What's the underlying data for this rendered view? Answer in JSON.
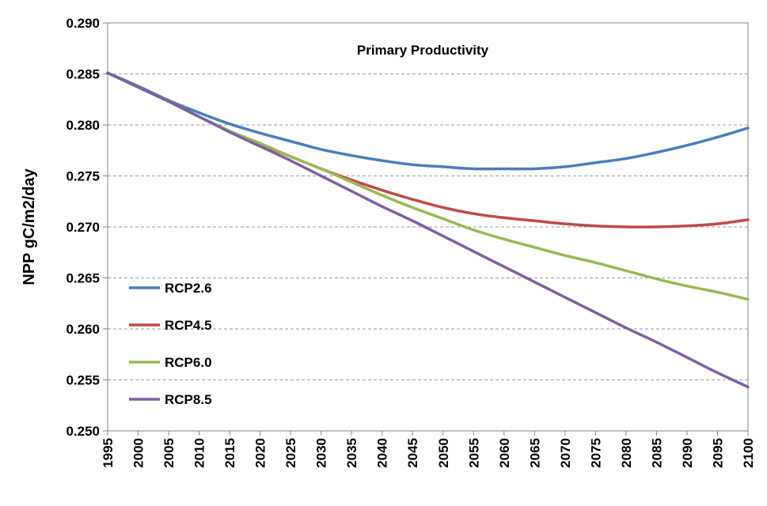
{
  "chart_data": {
    "type": "line",
    "title": "Primary Productivity",
    "ylabel": "NPP gC/m2/day",
    "xlabel": "",
    "xlim": [
      1995,
      2100
    ],
    "ylim": [
      0.25,
      0.29
    ],
    "x_ticks": [
      "1995",
      "2000",
      "2005",
      "2010",
      "2015",
      "2020",
      "2025",
      "2030",
      "2035",
      "2040",
      "2045",
      "2050",
      "2055",
      "2060",
      "2065",
      "2070",
      "2075",
      "2080",
      "2085",
      "2090",
      "2095",
      "2100"
    ],
    "y_ticks": [
      "0.250",
      "0.255",
      "0.260",
      "0.265",
      "0.270",
      "0.275",
      "0.280",
      "0.285",
      "0.290"
    ],
    "grid": "horizontal dashed",
    "legend_position": "left",
    "series": [
      {
        "name": "RCP2.6",
        "color": "#4a7ebb",
        "points": [
          [
            1995,
            0.2851
          ],
          [
            2000,
            0.2838
          ],
          [
            2005,
            0.2824
          ],
          [
            2010,
            0.2812
          ],
          [
            2015,
            0.2801
          ],
          [
            2020,
            0.2792
          ],
          [
            2025,
            0.2784
          ],
          [
            2030,
            0.2776
          ],
          [
            2035,
            0.277
          ],
          [
            2040,
            0.2765
          ],
          [
            2045,
            0.2761
          ],
          [
            2050,
            0.2759
          ],
          [
            2055,
            0.2757
          ],
          [
            2060,
            0.2757
          ],
          [
            2065,
            0.2757
          ],
          [
            2070,
            0.2759
          ],
          [
            2075,
            0.2763
          ],
          [
            2080,
            0.2767
          ],
          [
            2085,
            0.2773
          ],
          [
            2090,
            0.278
          ],
          [
            2095,
            0.2788
          ],
          [
            2100,
            0.2797
          ]
        ]
      },
      {
        "name": "RCP4.5",
        "color": "#be4b48",
        "points": [
          [
            1995,
            0.2851
          ],
          [
            2000,
            0.2837
          ],
          [
            2005,
            0.2823
          ],
          [
            2010,
            0.2808
          ],
          [
            2015,
            0.2794
          ],
          [
            2020,
            0.2781
          ],
          [
            2025,
            0.2769
          ],
          [
            2030,
            0.2757
          ],
          [
            2035,
            0.2746
          ],
          [
            2040,
            0.2736
          ],
          [
            2045,
            0.2727
          ],
          [
            2050,
            0.2719
          ],
          [
            2055,
            0.2713
          ],
          [
            2060,
            0.2709
          ],
          [
            2065,
            0.2706
          ],
          [
            2070,
            0.2703
          ],
          [
            2075,
            0.2701
          ],
          [
            2080,
            0.27
          ],
          [
            2085,
            0.27
          ],
          [
            2090,
            0.2701
          ],
          [
            2095,
            0.2703
          ],
          [
            2100,
            0.2707
          ]
        ]
      },
      {
        "name": "RCP6.0",
        "color": "#98b954",
        "points": [
          [
            1995,
            0.2851
          ],
          [
            2000,
            0.2837
          ],
          [
            2005,
            0.2823
          ],
          [
            2010,
            0.2808
          ],
          [
            2015,
            0.2794
          ],
          [
            2020,
            0.2782
          ],
          [
            2025,
            0.2769
          ],
          [
            2030,
            0.2757
          ],
          [
            2035,
            0.2744
          ],
          [
            2040,
            0.2731
          ],
          [
            2045,
            0.2719
          ],
          [
            2050,
            0.2708
          ],
          [
            2055,
            0.2697
          ],
          [
            2060,
            0.2688
          ],
          [
            2065,
            0.268
          ],
          [
            2070,
            0.2672
          ],
          [
            2075,
            0.2665
          ],
          [
            2080,
            0.2657
          ],
          [
            2085,
            0.2649
          ],
          [
            2090,
            0.2642
          ],
          [
            2095,
            0.2636
          ],
          [
            2100,
            0.2629
          ]
        ]
      },
      {
        "name": "RCP8.5",
        "color": "#7d60a0",
        "points": [
          [
            1995,
            0.2851
          ],
          [
            2000,
            0.2837
          ],
          [
            2005,
            0.2823
          ],
          [
            2010,
            0.2808
          ],
          [
            2015,
            0.2793
          ],
          [
            2020,
            0.2779
          ],
          [
            2025,
            0.2765
          ],
          [
            2030,
            0.275
          ],
          [
            2035,
            0.2735
          ],
          [
            2040,
            0.272
          ],
          [
            2045,
            0.2706
          ],
          [
            2050,
            0.2691
          ],
          [
            2055,
            0.2676
          ],
          [
            2060,
            0.2661
          ],
          [
            2065,
            0.2646
          ],
          [
            2070,
            0.2631
          ],
          [
            2075,
            0.2616
          ],
          [
            2080,
            0.2601
          ],
          [
            2085,
            0.2587
          ],
          [
            2090,
            0.2572
          ],
          [
            2095,
            0.2557
          ],
          [
            2100,
            0.2543
          ]
        ]
      }
    ]
  }
}
